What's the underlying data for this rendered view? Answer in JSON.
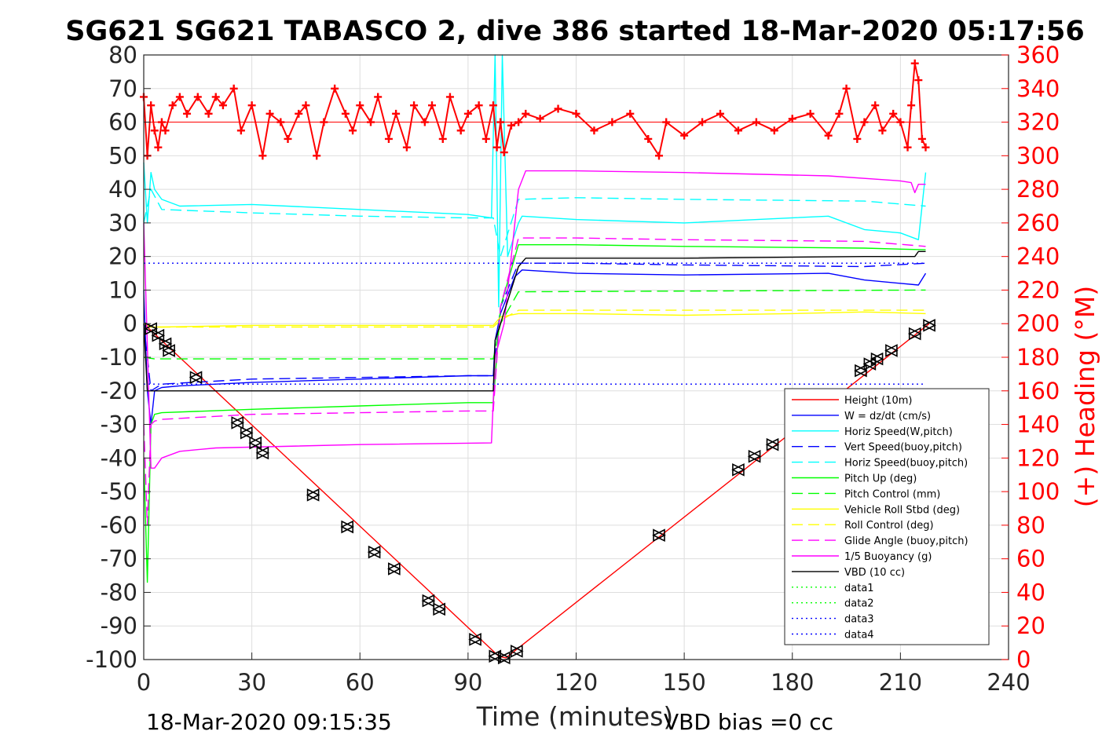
{
  "chart_data": {
    "type": "line",
    "title": "SG621 SG621 TABASCO 2, dive 386 started 18-Mar-2020 05:17:56",
    "xlabel": "Time (minutes)",
    "ylabel": "",
    "ylabel_right": "(+) Heading (°M)",
    "xlim": [
      0,
      240
    ],
    "ylim": [
      -100,
      80
    ],
    "ylim_right": [
      0,
      360
    ],
    "x_ticks": [
      "0",
      "30",
      "60",
      "90",
      "120",
      "150",
      "180",
      "210",
      "240"
    ],
    "y_ticks": [
      "-100",
      "-90",
      "-80",
      "-70",
      "-60",
      "-50",
      "-40",
      "-30",
      "-20",
      "-10",
      "0",
      "10",
      "20",
      "30",
      "40",
      "50",
      "60",
      "70",
      "80"
    ],
    "y_ticks_right": [
      "0",
      "20",
      "40",
      "60",
      "80",
      "100",
      "120",
      "140",
      "160",
      "180",
      "200",
      "220",
      "240",
      "260",
      "280",
      "300",
      "320",
      "340",
      "360"
    ],
    "grid": true,
    "legend_position": "bottom-right",
    "footer_left": "18-Mar-2020 09:15:35",
    "footer_right": "VBD bias =0 cc",
    "colors": {
      "height": "#ff0000",
      "w": "#0000ff",
      "cyan": "#00ffff",
      "green": "#00ff00",
      "yellow": "#ffff00",
      "magenta": "#ff00ff",
      "black": "#000000",
      "heading": "#ff0000"
    },
    "series": [
      {
        "name": "Height (10m)",
        "color": "#ff0000",
        "style": "solid",
        "x": [
          0,
          98.5,
          100.5,
          218
        ],
        "y": [
          0,
          -99,
          -99.5,
          0
        ]
      },
      {
        "name": "W = dz/dt (cm/s)",
        "color": "#0000ff",
        "style": "solid",
        "x": [
          0,
          1,
          2,
          3,
          5,
          10,
          30,
          60,
          90,
          97,
          97.5,
          99,
          103,
          105,
          120,
          150,
          190,
          200,
          215,
          217
        ],
        "y": [
          10,
          -20,
          -30,
          -20,
          -19,
          -18.5,
          -17.5,
          -16.5,
          -15.5,
          -15.5,
          -5,
          3,
          14,
          16,
          15,
          14.5,
          15,
          13,
          11.5,
          15
        ]
      },
      {
        "name": "Horiz Speed(W,pitch)",
        "color": "#00ffff",
        "style": "solid",
        "x": [
          0,
          1,
          2,
          3,
          5,
          10,
          30,
          60,
          90,
          96.5,
          97.5,
          98.5,
          99.5,
          101,
          104,
          105,
          120,
          150,
          190,
          200,
          210,
          215,
          217
        ],
        "y": [
          48,
          30,
          45,
          40,
          37,
          35,
          35.5,
          34,
          32.5,
          31.5,
          80,
          5,
          80,
          20,
          30,
          32,
          31,
          30,
          32,
          28,
          27,
          25,
          45
        ]
      },
      {
        "name": "Vert Speed(buoy,pitch)",
        "color": "#0000ff",
        "style": "dash",
        "x": [
          0,
          2,
          5,
          30,
          60,
          90,
          97,
          99,
          104,
          120,
          150,
          200,
          217
        ],
        "y": [
          0,
          -20,
          -18,
          -16.5,
          -16,
          -15.5,
          -15.5,
          5,
          18,
          18,
          17.5,
          17,
          18
        ]
      },
      {
        "name": "Horiz Speed(buoy,pitch)",
        "color": "#00ffff",
        "style": "dash",
        "x": [
          0,
          2,
          5,
          30,
          60,
          90,
          97,
          99,
          104,
          120,
          150,
          200,
          217
        ],
        "y": [
          30,
          40,
          34,
          33,
          32,
          31.5,
          31.5,
          20,
          37,
          37.5,
          37,
          36.5,
          35
        ]
      },
      {
        "name": "Pitch Up (deg)",
        "color": "#00ff00",
        "style": "solid",
        "x": [
          0,
          1,
          2,
          3,
          5,
          30,
          60,
          90,
          97,
          99,
          104,
          120,
          150,
          200,
          217
        ],
        "y": [
          -40,
          -77,
          -30,
          -27,
          -26.5,
          -25.5,
          -24.5,
          -23.5,
          -23.5,
          5,
          23.5,
          23.5,
          23,
          22.5,
          22
        ]
      },
      {
        "name": "Pitch Control (mm)",
        "color": "#00ff00",
        "style": "dash",
        "x": [
          0,
          3,
          97,
          99,
          104,
          217
        ],
        "y": [
          -10,
          -10.5,
          -10.5,
          0,
          9.5,
          10
        ]
      },
      {
        "name": "Vehicle Roll Stbd (deg)",
        "color": "#ffff00",
        "style": "solid",
        "x": [
          0,
          2,
          5,
          30,
          60,
          90,
          97,
          99,
          104,
          120,
          150,
          180,
          200,
          217
        ],
        "y": [
          0,
          -1,
          -1,
          -0.5,
          -0.5,
          -0.5,
          -0.5,
          2,
          3,
          3,
          2.5,
          3,
          3.5,
          3
        ]
      },
      {
        "name": "Roll Control (deg)",
        "color": "#ffff00",
        "style": "dash",
        "x": [
          0,
          2,
          97,
          99,
          104,
          217
        ],
        "y": [
          0,
          -1,
          -1,
          1,
          4,
          4
        ]
      },
      {
        "name": "Glide Angle (buoy,pitch)",
        "color": "#ff00ff",
        "style": "dash",
        "x": [
          0,
          1,
          2,
          3,
          5,
          30,
          60,
          90,
          97,
          99,
          104,
          120,
          150,
          200,
          217
        ],
        "y": [
          -30,
          -60,
          -30,
          -29,
          -28.5,
          -27,
          -26.5,
          -26,
          -26,
          5,
          25.5,
          25.5,
          25,
          24.5,
          23
        ]
      },
      {
        "name": "1/5 Buoyancy (g)",
        "color": "#ff00ff",
        "style": "solid",
        "x": [
          0,
          2,
          3,
          5,
          10,
          20,
          60,
          96.5,
          97.5,
          100,
          104,
          106,
          120,
          150,
          190,
          210,
          213,
          214,
          215,
          217
        ],
        "y": [
          30,
          -43,
          -43,
          -40,
          -38,
          -37,
          -36,
          -35.5,
          -10,
          0,
          40,
          45.5,
          45.5,
          45,
          44,
          42.5,
          42,
          39,
          41.5,
          41.5
        ]
      },
      {
        "name": "VBD (10 cc)",
        "color": "#000000",
        "style": "solid",
        "x": [
          0,
          1,
          2,
          5,
          97,
          97.5,
          99,
          104,
          106,
          120,
          150,
          200,
          214,
          215,
          217
        ],
        "y": [
          0,
          -20,
          -20,
          -20,
          -20,
          -5,
          0,
          17,
          19.5,
          19.5,
          19.5,
          20,
          20,
          21.5,
          21.5
        ]
      },
      {
        "name": "data1",
        "color": "#00ff00",
        "style": "dot",
        "x": [],
        "y": []
      },
      {
        "name": "data2",
        "color": "#00ff00",
        "style": "dot",
        "x": [],
        "y": []
      },
      {
        "name": "data3",
        "color": "#0000ff",
        "style": "dot",
        "x": [
          0,
          217
        ],
        "y": [
          18,
          18
        ]
      },
      {
        "name": "data4",
        "color": "#0000ff",
        "style": "dot",
        "x": [
          0,
          217
        ],
        "y": [
          -18,
          -18
        ]
      }
    ],
    "heading": {
      "axis": "right",
      "color": "#ff0000",
      "mean_line": 320,
      "x": [
        0,
        1,
        2,
        3,
        4,
        5,
        6,
        8,
        10,
        12,
        15,
        18,
        20,
        22,
        25,
        27,
        30,
        33,
        35,
        38,
        40,
        43,
        45,
        48,
        50,
        53,
        56,
        58,
        60,
        63,
        65,
        68,
        70,
        73,
        75,
        78,
        80,
        83,
        85,
        88,
        90,
        93,
        95,
        97,
        98,
        99,
        100,
        102,
        104,
        106,
        110,
        115,
        120,
        125,
        130,
        135,
        140,
        143,
        145,
        150,
        155,
        160,
        165,
        170,
        175,
        180,
        185,
        190,
        193,
        195,
        198,
        200,
        203,
        205,
        208,
        210,
        212,
        213,
        214,
        215,
        216,
        217
      ],
      "y": [
        335,
        300,
        330,
        315,
        305,
        320,
        315,
        330,
        335,
        325,
        335,
        325,
        335,
        330,
        340,
        315,
        330,
        300,
        325,
        320,
        310,
        325,
        330,
        300,
        320,
        340,
        325,
        315,
        330,
        320,
        335,
        310,
        325,
        305,
        330,
        320,
        330,
        310,
        335,
        315,
        325,
        330,
        310,
        330,
        305,
        320,
        302,
        318,
        320,
        325,
        322,
        328,
        325,
        315,
        320,
        325,
        310,
        300,
        320,
        312,
        320,
        325,
        315,
        320,
        315,
        322,
        325,
        312,
        325,
        340,
        310,
        320,
        330,
        315,
        325,
        320,
        305,
        330,
        355,
        345,
        310,
        305
      ]
    },
    "markers": {
      "symbol": "triangles",
      "x": [
        2,
        4,
        6,
        7,
        14.5,
        26,
        28.5,
        31,
        33,
        47,
        56.5,
        64,
        69.5,
        79,
        82,
        92,
        97.5,
        100,
        103.5,
        143,
        165,
        169.5,
        174.5,
        199,
        201.5,
        203.5,
        207.5,
        214,
        218
      ],
      "y": [
        -1.5,
        -3.5,
        -6,
        -8,
        -16,
        -29.5,
        -32.5,
        -35.5,
        -38.5,
        -51,
        -60.5,
        -68,
        -73,
        -82.5,
        -85,
        -94,
        -99,
        -99.5,
        -97.5,
        -63,
        -43.5,
        -39.5,
        -36,
        -14,
        -12,
        -10.5,
        -8,
        -3,
        -0.5
      ]
    }
  }
}
